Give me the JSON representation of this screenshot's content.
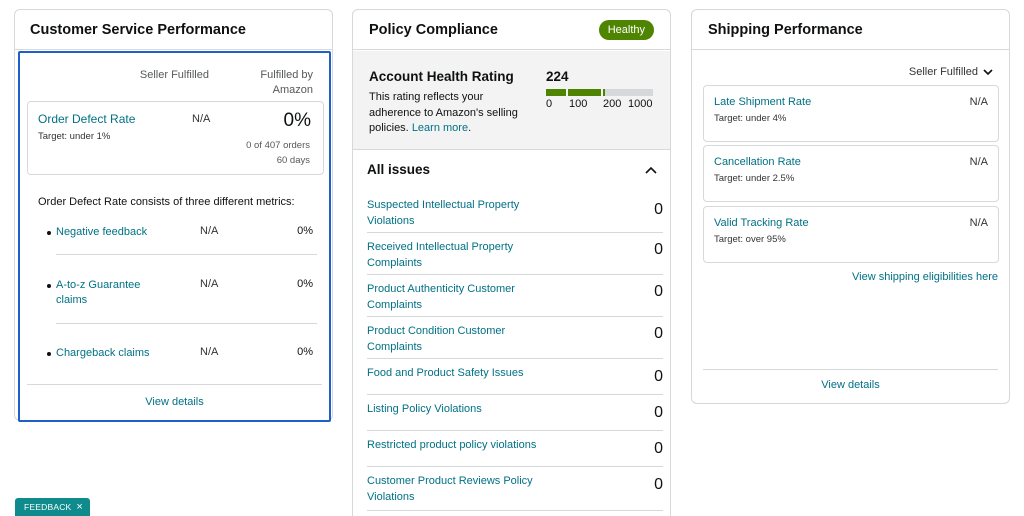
{
  "customer_service": {
    "title": "Customer Service Performance",
    "col_seller": "Seller Fulfilled",
    "col_amazon": "Fulfilled by Amazon",
    "odr": {
      "title": "Order Defect Rate",
      "target": "Target: under 1%",
      "seller_value": "N/A",
      "amazon_value": "0%",
      "orders": "0 of 407 orders",
      "period": "60 days"
    },
    "consists_text": "Order Defect Rate consists of three different metrics:",
    "metrics": [
      {
        "name": "Negative feedback",
        "seller": "N/A",
        "amazon": "0%"
      },
      {
        "name": "A-to-z Guarantee claims",
        "seller": "N/A",
        "amazon": "0%"
      },
      {
        "name": "Chargeback claims",
        "seller": "N/A",
        "amazon": "0%"
      }
    ],
    "view_details": "View details"
  },
  "policy": {
    "title": "Policy Compliance",
    "badge": "Healthy",
    "ahr": {
      "title": "Account Health Rating",
      "desc": "This rating reflects your adherence to Amazon's selling policies.",
      "learn_more": "Learn more",
      "score": "224",
      "score_value": 224,
      "ticks": [
        "0",
        "100",
        "200",
        "1000"
      ]
    },
    "issues_title": "All issues",
    "issues": [
      {
        "name": "Suspected Intellectual Property Violations",
        "value": "0"
      },
      {
        "name": "Received Intellectual Property Complaints",
        "value": "0"
      },
      {
        "name": "Product Authenticity Customer Complaints",
        "value": "0"
      },
      {
        "name": "Product Condition Customer Complaints",
        "value": "0"
      },
      {
        "name": "Food and Product Safety Issues",
        "value": "0"
      },
      {
        "name": "Listing Policy Violations",
        "value": "0"
      },
      {
        "name": "Restricted product policy violations",
        "value": "0"
      },
      {
        "name": "Customer Product Reviews Policy Violations",
        "value": "0"
      }
    ],
    "colors": {
      "healthy": "#4e8400",
      "bar_empty": "#d5d9d9"
    }
  },
  "shipping": {
    "title": "Shipping Performance",
    "dropdown": "Seller Fulfilled",
    "metrics": [
      {
        "name": "Late Shipment Rate",
        "target": "Target: under 4%",
        "value": "N/A"
      },
      {
        "name": "Cancellation Rate",
        "target": "Target: under 2.5%",
        "value": "N/A"
      },
      {
        "name": "Valid Tracking Rate",
        "target": "Target: over 95%",
        "value": "N/A"
      }
    ],
    "eligibility_link": "View shipping eligibilities here",
    "view_details": "View details"
  },
  "feedback": {
    "label": "FEEDBACK",
    "close": "×"
  }
}
